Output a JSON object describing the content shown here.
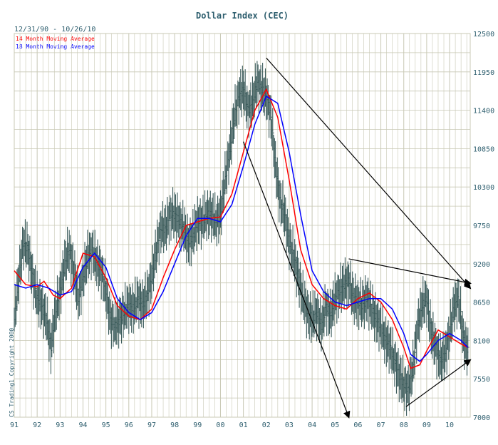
{
  "chart_data": {
    "type": "line",
    "title": "Dollar Index (CEC)",
    "date_range": "12/31/90 - 10/26/10",
    "copyright": "CS Trading1 Copyright 2000",
    "x_ticks": [
      "91",
      "92",
      "93",
      "94",
      "95",
      "96",
      "97",
      "98",
      "99",
      "00",
      "01",
      "02",
      "03",
      "04",
      "05",
      "06",
      "07",
      "08",
      "09",
      "10"
    ],
    "y_ticks": [
      "7000",
      "7550",
      "8100",
      "8650",
      "9200",
      "9750",
      "10300",
      "10850",
      "11400",
      "11950",
      "12500"
    ],
    "ylim": [
      7000,
      12500
    ],
    "xlim": [
      1991.0,
      2010.9
    ],
    "grid": true,
    "legend_position": "top-left",
    "colors": {
      "price_bars": "#3a5a5a",
      "ma14": "#ff0000",
      "ma18": "#0000ff",
      "grid": "#c8c8b4",
      "axis_text": "#2f5f6f",
      "trendlines": "#000000"
    },
    "series": [
      {
        "name": "14 Month Moving Average",
        "color": "#ff0000",
        "x": [
          1991.0,
          1991.5,
          1992.0,
          1992.3,
          1992.7,
          1993.0,
          1993.5,
          1994.0,
          1994.5,
          1995.0,
          1995.5,
          1996.0,
          1996.5,
          1997.0,
          1997.5,
          1998.0,
          1998.5,
          1999.0,
          1999.5,
          2000.0,
          2000.5,
          2001.0,
          2001.5,
          2002.0,
          2002.5,
          2003.0,
          2003.5,
          2004.0,
          2004.5,
          2005.0,
          2005.5,
          2006.0,
          2006.5,
          2007.0,
          2007.5,
          2008.0,
          2008.3,
          2008.7,
          2009.0,
          2009.5,
          2010.0,
          2010.5,
          2010.8
        ],
        "y": [
          9100,
          8900,
          8870,
          8950,
          8750,
          8700,
          8850,
          9350,
          9300,
          9000,
          8600,
          8450,
          8400,
          8550,
          9000,
          9400,
          9750,
          9800,
          9850,
          9870,
          10200,
          10800,
          11400,
          11700,
          11300,
          10400,
          9400,
          8900,
          8700,
          8600,
          8550,
          8700,
          8780,
          8650,
          8400,
          8000,
          7700,
          7750,
          7950,
          8250,
          8150,
          8050,
          8000
        ]
      },
      {
        "name": "18 Month Moving Average",
        "color": "#0000ff",
        "x": [
          1991.0,
          1991.5,
          1992.0,
          1992.5,
          1993.0,
          1993.5,
          1994.0,
          1994.5,
          1995.0,
          1995.5,
          1996.0,
          1996.5,
          1997.0,
          1997.5,
          1998.0,
          1998.5,
          1999.0,
          1999.5,
          2000.0,
          2000.5,
          2001.0,
          2001.5,
          2002.0,
          2002.5,
          2003.0,
          2003.5,
          2004.0,
          2004.5,
          2005.0,
          2005.5,
          2006.0,
          2006.5,
          2007.0,
          2007.5,
          2008.0,
          2008.3,
          2008.7,
          2009.0,
          2009.5,
          2010.0,
          2010.5,
          2010.8
        ],
        "y": [
          8900,
          8850,
          8900,
          8850,
          8750,
          8800,
          9150,
          9350,
          9150,
          8700,
          8500,
          8400,
          8500,
          8800,
          9200,
          9600,
          9850,
          9850,
          9800,
          10050,
          10600,
          11200,
          11600,
          11500,
          10800,
          9900,
          9100,
          8800,
          8650,
          8600,
          8650,
          8700,
          8700,
          8550,
          8200,
          7900,
          7800,
          7900,
          8100,
          8200,
          8100,
          8000
        ]
      },
      {
        "name": "Dollar Index",
        "color": "#3a5a5a",
        "x": [
          1991.0,
          1991.2,
          1991.4,
          1991.6,
          1991.8,
          1992.0,
          1992.2,
          1992.4,
          1992.6,
          1992.8,
          1993.0,
          1993.2,
          1993.4,
          1993.6,
          1993.8,
          1994.0,
          1994.2,
          1994.4,
          1994.6,
          1994.8,
          1995.0,
          1995.2,
          1995.4,
          1995.6,
          1995.8,
          1996.0,
          1996.2,
          1996.4,
          1996.6,
          1996.8,
          1997.0,
          1997.2,
          1997.4,
          1997.6,
          1997.8,
          1998.0,
          1998.2,
          1998.4,
          1998.6,
          1998.8,
          1999.0,
          1999.2,
          1999.4,
          1999.6,
          1999.8,
          2000.0,
          2000.2,
          2000.4,
          2000.6,
          2000.8,
          2001.0,
          2001.2,
          2001.4,
          2001.6,
          2001.8,
          2002.0,
          2002.2,
          2002.4,
          2002.6,
          2002.8,
          2003.0,
          2003.2,
          2003.4,
          2003.6,
          2003.8,
          2004.0,
          2004.2,
          2004.4,
          2004.6,
          2004.8,
          2005.0,
          2005.2,
          2005.4,
          2005.6,
          2005.8,
          2006.0,
          2006.2,
          2006.4,
          2006.6,
          2006.8,
          2007.0,
          2007.2,
          2007.4,
          2007.6,
          2007.8,
          2008.0,
          2008.2,
          2008.4,
          2008.6,
          2008.8,
          2009.0,
          2009.2,
          2009.4,
          2009.6,
          2009.8,
          2010.0,
          2010.2,
          2010.4,
          2010.6,
          2010.8
        ],
        "y": [
          8400,
          9000,
          9500,
          9400,
          9000,
          8700,
          8600,
          8400,
          8000,
          8500,
          8800,
          9200,
          9400,
          9100,
          8700,
          9000,
          9300,
          9400,
          9200,
          9100,
          8800,
          8400,
          8300,
          8400,
          8500,
          8600,
          8550,
          8700,
          8600,
          8750,
          9000,
          9400,
          9700,
          9700,
          9900,
          9900,
          9800,
          9700,
          9500,
          9600,
          9800,
          9800,
          9900,
          9900,
          9800,
          9900,
          10400,
          10800,
          11300,
          11600,
          11700,
          11400,
          11500,
          11800,
          11700,
          11600,
          11300,
          10600,
          10100,
          9900,
          9500,
          9300,
          9000,
          8700,
          8500,
          8400,
          8500,
          8300,
          8600,
          8450,
          8700,
          8800,
          8900,
          8950,
          8700,
          8650,
          8600,
          8700,
          8550,
          8400,
          8300,
          8100,
          8000,
          7800,
          7600,
          7450,
          7400,
          7700,
          8300,
          8600,
          8700,
          8200,
          8000,
          7800,
          7900,
          8200,
          8600,
          8700,
          8100,
          7950
        ]
      }
    ],
    "trendlines": [
      {
        "from": [
          2002.0,
          12150
        ],
        "to": [
          2010.9,
          8850
        ]
      },
      {
        "from": [
          2001.0,
          10950
        ],
        "to": [
          2005.6,
          7000
        ]
      },
      {
        "from": [
          2005.6,
          9270
        ],
        "to": [
          2010.9,
          8920
        ]
      },
      {
        "from": [
          2008.1,
          7150
        ],
        "to": [
          2010.9,
          7820
        ]
      }
    ]
  }
}
